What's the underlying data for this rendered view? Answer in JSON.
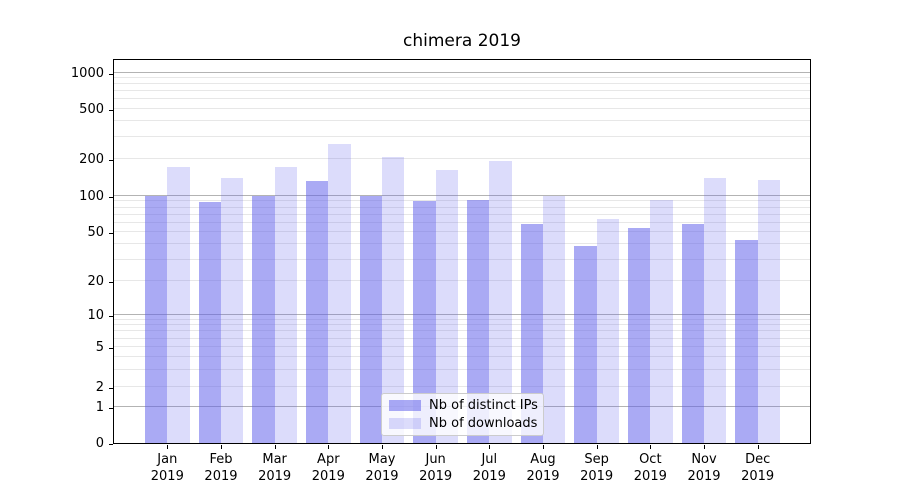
{
  "figure": {
    "title": "chimera 2019"
  },
  "chart_data": {
    "type": "bar",
    "title": "chimera 2019",
    "categories": [
      "Jan 2019",
      "Feb 2019",
      "Mar 2019",
      "Apr 2019",
      "May 2019",
      "Jun 2019",
      "Jul 2019",
      "Aug 2019",
      "Sep 2019",
      "Oct 2019",
      "Nov 2019",
      "Dec 2019"
    ],
    "x_tick_labels": [
      {
        "month": "Jan",
        "year": "2019"
      },
      {
        "month": "Feb",
        "year": "2019"
      },
      {
        "month": "Mar",
        "year": "2019"
      },
      {
        "month": "Apr",
        "year": "2019"
      },
      {
        "month": "May",
        "year": "2019"
      },
      {
        "month": "Jun",
        "year": "2019"
      },
      {
        "month": "Jul",
        "year": "2019"
      },
      {
        "month": "Aug",
        "year": "2019"
      },
      {
        "month": "Sep",
        "year": "2019"
      },
      {
        "month": "Oct",
        "year": "2019"
      },
      {
        "month": "Nov",
        "year": "2019"
      },
      {
        "month": "Dec",
        "year": "2019"
      }
    ],
    "series": [
      {
        "name": "Nb of distinct IPs",
        "color": "rgba(95,95,235,0.53)",
        "values": [
          100,
          89,
          100,
          131,
          100,
          90,
          93,
          59,
          39,
          54,
          58,
          43
        ]
      },
      {
        "name": "Nb of downloads",
        "color": "rgba(95,95,235,0.22)",
        "values": [
          172,
          141,
          172,
          265,
          207,
          162,
          192,
          100,
          64,
          93,
          139,
          134
        ]
      }
    ],
    "yscale": "symlog",
    "ylim": [
      0,
      1290
    ],
    "y_ticks": [
      {
        "value": 0,
        "label": "0",
        "f": 0.0
      },
      {
        "value": 1,
        "label": "1",
        "f": 0.093
      },
      {
        "value": 2,
        "label": "2",
        "f": 0.145
      },
      {
        "value": 5,
        "label": "5",
        "f": 0.2492
      },
      {
        "value": 10,
        "label": "10",
        "f": 0.3341
      },
      {
        "value": 20,
        "label": "20",
        "f": 0.4211
      },
      {
        "value": 50,
        "label": "50",
        "f": 0.5487
      },
      {
        "value": 100,
        "label": "100",
        "f": 0.644
      },
      {
        "value": 200,
        "label": "200",
        "f": 0.7396
      },
      {
        "value": 500,
        "label": "500",
        "f": 0.8698
      },
      {
        "value": 1000,
        "label": "1000",
        "f": 0.9648
      }
    ],
    "grid": {
      "major_values": [
        1,
        10,
        100,
        1000
      ],
      "minor_values": [
        2,
        3,
        4,
        5,
        6,
        7,
        8,
        9,
        20,
        30,
        40,
        50,
        60,
        70,
        80,
        90,
        200,
        300,
        400,
        500,
        600,
        700,
        800,
        900
      ],
      "major_color": "#b3b3b3",
      "minor_color": "#e7e7e7"
    },
    "legend_position": "lower center"
  }
}
